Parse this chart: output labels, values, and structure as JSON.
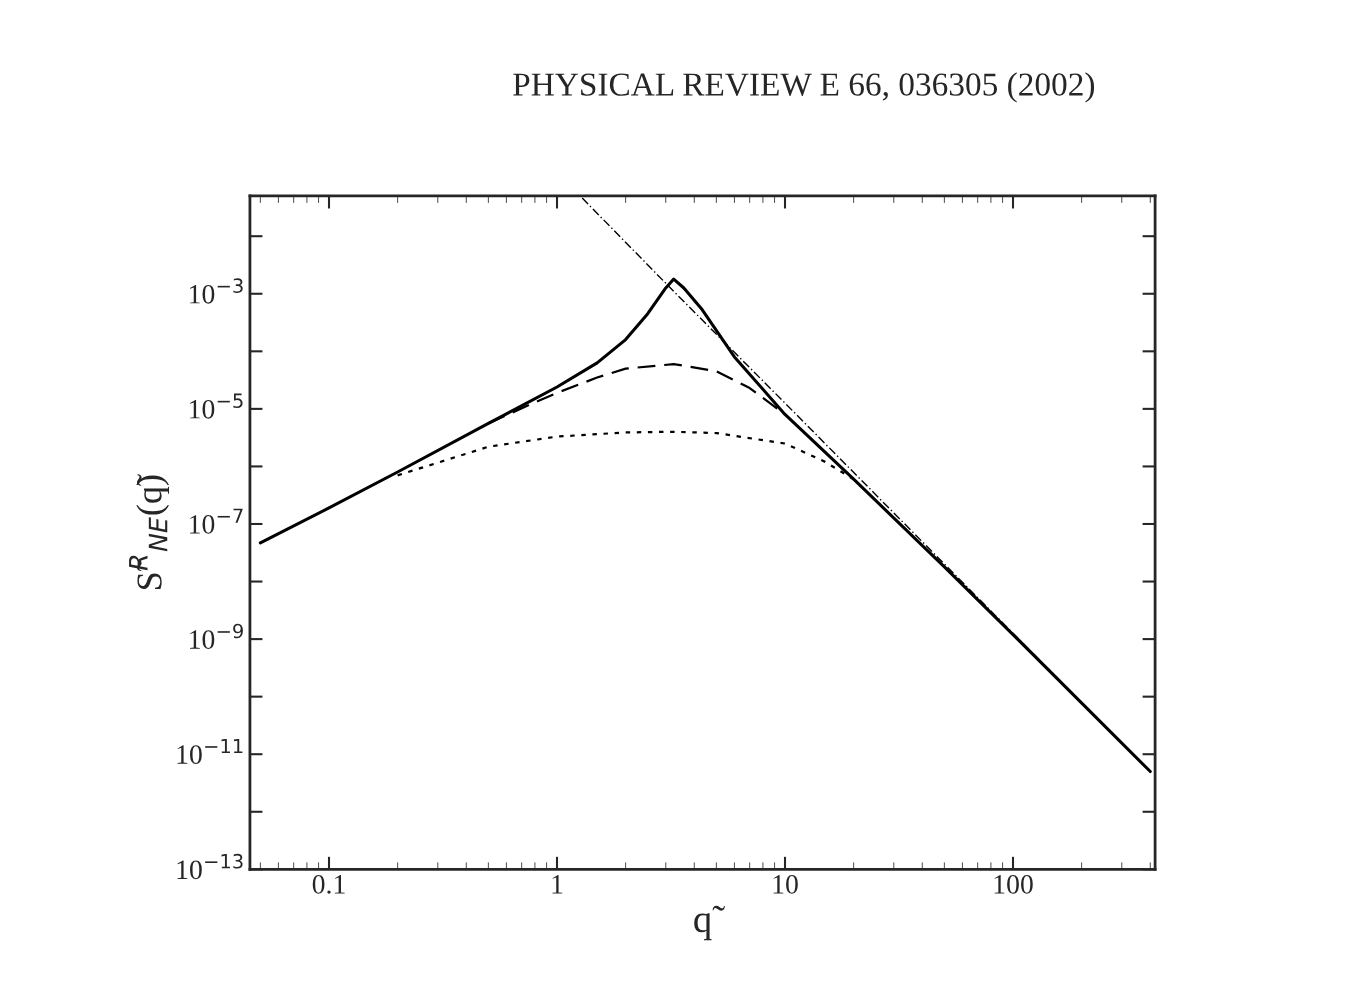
{
  "chart_data": {
    "type": "line",
    "title": "PHYSICAL REVIEW E 66, 036305 (2002)",
    "xlabel": "q̃",
    "ylabel": "S̃$^{R}$$_{NE}$(q̃)",
    "log": "xy",
    "grid": false,
    "legend": false,
    "marker": "none",
    "xlim": [
      0.045,
      420
    ],
    "ylim": [
      1e-13,
      0.05
    ],
    "xticks": [
      0.1,
      1,
      10,
      100
    ],
    "yticks": [
      {
        "value": 1e-13,
        "label": "10$^{−13}$"
      },
      {
        "value": 1e-12,
        "label": null
      },
      {
        "value": 1e-11,
        "label": "10$^{−11}$"
      },
      {
        "value": 1e-10,
        "label": null
      },
      {
        "value": 1e-09,
        "label": "10$^{−9}$"
      },
      {
        "value": 1e-08,
        "label": null
      },
      {
        "value": 1e-07,
        "label": "10$^{−7}$"
      },
      {
        "value": 1e-06,
        "label": null
      },
      {
        "value": 1e-05,
        "label": "10$^{−5}$"
      },
      {
        "value": 0.0001,
        "label": null
      },
      {
        "value": 0.001,
        "label": "10$^{−3}$"
      },
      {
        "value": 0.01,
        "label": null
      }
    ],
    "series": [
      {
        "color": "#000000",
        "line_style": "solid",
        "x": [
          0.05,
          0.1,
          0.2,
          0.5,
          1,
          1.5,
          2,
          2.5,
          3,
          3.25,
          3.6,
          4.3,
          6,
          10,
          20,
          50,
          100,
          400
        ],
        "values": [
          4.7e-08,
          1.9e-07,
          8e-07,
          5.6e-06,
          2.4e-05,
          6.3e-05,
          0.00016,
          0.00045,
          0.00126,
          0.0018,
          0.00126,
          0.00055,
          8e-05,
          8e-06,
          6e-07,
          1.8e-08,
          1.2e-09,
          5e-12
        ]
      },
      {
        "color": "#000000",
        "line_style": "dashed",
        "x": [
          0.5,
          0.8,
          1,
          1.5,
          2,
          3.25,
          5,
          7,
          10
        ],
        "values": [
          5.6e-06,
          1.3e-05,
          1.9e-05,
          3.5e-05,
          5e-05,
          6e-05,
          4.5e-05,
          2.3e-05,
          8e-06
        ]
      },
      {
        "color": "#000000",
        "line_style": "dotted",
        "x": [
          0.2,
          0.5,
          1,
          2,
          3.25,
          5,
          10,
          15,
          20
        ],
        "values": [
          7e-07,
          2.2e-06,
          3.3e-06,
          3.9e-06,
          4e-06,
          3.8e-06,
          2.5e-06,
          1.2e-06,
          6e-07
        ]
      },
      {
        "color": "#000000",
        "line_style": "dashdot",
        "x": [
          1.29,
          3.25,
          10,
          100,
          400
        ],
        "values": [
          0.046,
          0.0011,
          1.26e-05,
          1.26e-09,
          5e-12
        ]
      }
    ]
  }
}
